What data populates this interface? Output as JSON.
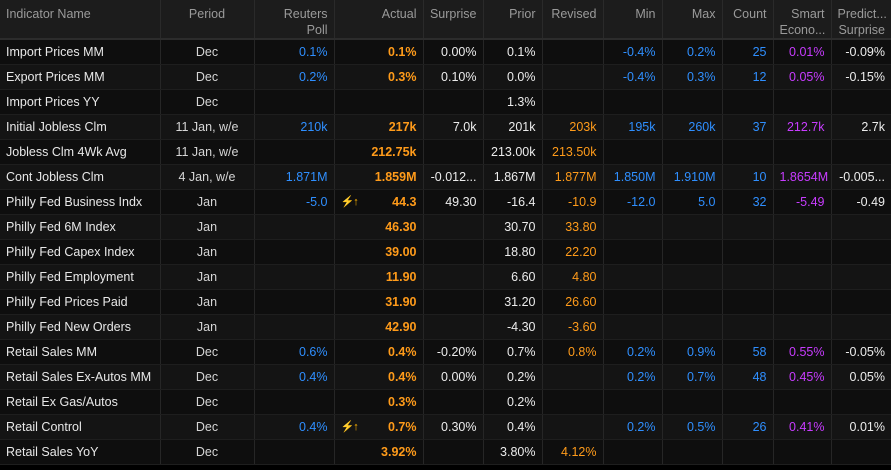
{
  "columns": {
    "indicator": "Indicator Name",
    "period": "Period",
    "reuters_poll": "Reuters Poll",
    "actual": "Actual",
    "surprise": "Surprise",
    "prior": "Prior",
    "revised": "Revised",
    "min": "Min",
    "max": "Max",
    "count": "Count",
    "smart": "Smart Econo...",
    "predict": "Predict... Surprise"
  },
  "colors": {
    "blue": "#2f8fff",
    "orange": "#ff9b1a",
    "purple": "#c83cff",
    "flag": "#ffb300"
  },
  "rows": [
    {
      "name": "Import Prices MM",
      "period": "Dec",
      "poll": "0.1%",
      "flag": "",
      "actual": "0.1%",
      "surprise": "0.00%",
      "prior": "0.1%",
      "revised": "",
      "min": "-0.4%",
      "max": "0.2%",
      "count": "25",
      "smart": "0.01%",
      "predict": "-0.09%"
    },
    {
      "name": "Export Prices MM",
      "period": "Dec",
      "poll": "0.2%",
      "flag": "",
      "actual": "0.3%",
      "surprise": "0.10%",
      "prior": "0.0%",
      "revised": "",
      "min": "-0.4%",
      "max": "0.3%",
      "count": "12",
      "smart": "0.05%",
      "predict": "-0.15%"
    },
    {
      "name": "Import Prices YY",
      "period": "Dec",
      "poll": "",
      "flag": "",
      "actual": "",
      "surprise": "",
      "prior": "1.3%",
      "revised": "",
      "min": "",
      "max": "",
      "count": "",
      "smart": "",
      "predict": ""
    },
    {
      "name": "Initial Jobless Clm",
      "period": "11 Jan, w/e",
      "poll": "210k",
      "flag": "",
      "actual": "217k",
      "surprise": "7.0k",
      "prior": "201k",
      "revised": "203k",
      "min": "195k",
      "max": "260k",
      "count": "37",
      "smart": "212.7k",
      "predict": "2.7k"
    },
    {
      "name": "Jobless Clm 4Wk Avg",
      "period": "11 Jan, w/e",
      "poll": "",
      "flag": "",
      "actual": "212.75k",
      "surprise": "",
      "prior": "213.00k",
      "revised": "213.50k",
      "min": "",
      "max": "",
      "count": "",
      "smart": "",
      "predict": ""
    },
    {
      "name": "Cont Jobless Clm",
      "period": "4 Jan, w/e",
      "poll": "1.871M",
      "flag": "",
      "actual": "1.859M",
      "surprise": "-0.012...",
      "prior": "1.867M",
      "revised": "1.877M",
      "min": "1.850M",
      "max": "1.910M",
      "count": "10",
      "smart": "1.8654M",
      "predict": "-0.005..."
    },
    {
      "name": "Philly Fed Business Indx",
      "period": "Jan",
      "poll": "-5.0",
      "flag": "⚡↑",
      "actual": "44.3",
      "surprise": "49.30",
      "prior": "-16.4",
      "revised": "-10.9",
      "min": "-12.0",
      "max": "5.0",
      "count": "32",
      "smart": "-5.49",
      "predict": "-0.49"
    },
    {
      "name": "Philly Fed 6M Index",
      "period": "Jan",
      "poll": "",
      "flag": "",
      "actual": "46.30",
      "surprise": "",
      "prior": "30.70",
      "revised": "33.80",
      "min": "",
      "max": "",
      "count": "",
      "smart": "",
      "predict": ""
    },
    {
      "name": "Philly Fed Capex Index",
      "period": "Jan",
      "poll": "",
      "flag": "",
      "actual": "39.00",
      "surprise": "",
      "prior": "18.80",
      "revised": "22.20",
      "min": "",
      "max": "",
      "count": "",
      "smart": "",
      "predict": ""
    },
    {
      "name": "Philly Fed Employment",
      "period": "Jan",
      "poll": "",
      "flag": "",
      "actual": "11.90",
      "surprise": "",
      "prior": "6.60",
      "revised": "4.80",
      "min": "",
      "max": "",
      "count": "",
      "smart": "",
      "predict": ""
    },
    {
      "name": "Philly Fed Prices Paid",
      "period": "Jan",
      "poll": "",
      "flag": "",
      "actual": "31.90",
      "surprise": "",
      "prior": "31.20",
      "revised": "26.60",
      "min": "",
      "max": "",
      "count": "",
      "smart": "",
      "predict": ""
    },
    {
      "name": "Philly Fed New Orders",
      "period": "Jan",
      "poll": "",
      "flag": "",
      "actual": "42.90",
      "surprise": "",
      "prior": "-4.30",
      "revised": "-3.60",
      "min": "",
      "max": "",
      "count": "",
      "smart": "",
      "predict": ""
    },
    {
      "name": "Retail Sales MM",
      "period": "Dec",
      "poll": "0.6%",
      "flag": "",
      "actual": "0.4%",
      "surprise": "-0.20%",
      "prior": "0.7%",
      "revised": "0.8%",
      "min": "0.2%",
      "max": "0.9%",
      "count": "58",
      "smart": "0.55%",
      "predict": "-0.05%"
    },
    {
      "name": "Retail Sales Ex-Autos MM",
      "period": "Dec",
      "poll": "0.4%",
      "flag": "",
      "actual": "0.4%",
      "surprise": "0.00%",
      "prior": "0.2%",
      "revised": "",
      "min": "0.2%",
      "max": "0.7%",
      "count": "48",
      "smart": "0.45%",
      "predict": "0.05%"
    },
    {
      "name": "Retail Ex Gas/Autos",
      "period": "Dec",
      "poll": "",
      "flag": "",
      "actual": "0.3%",
      "surprise": "",
      "prior": "0.2%",
      "revised": "",
      "min": "",
      "max": "",
      "count": "",
      "smart": "",
      "predict": ""
    },
    {
      "name": "Retail Control",
      "period": "Dec",
      "poll": "0.4%",
      "flag": "⚡↑",
      "actual": "0.7%",
      "surprise": "0.30%",
      "prior": "0.4%",
      "revised": "",
      "min": "0.2%",
      "max": "0.5%",
      "count": "26",
      "smart": "0.41%",
      "predict": "0.01%"
    },
    {
      "name": "Retail Sales YoY",
      "period": "Dec",
      "poll": "",
      "flag": "",
      "actual": "3.92%",
      "surprise": "",
      "prior": "3.80%",
      "revised": "4.12%",
      "min": "",
      "max": "",
      "count": "",
      "smart": "",
      "predict": ""
    }
  ]
}
